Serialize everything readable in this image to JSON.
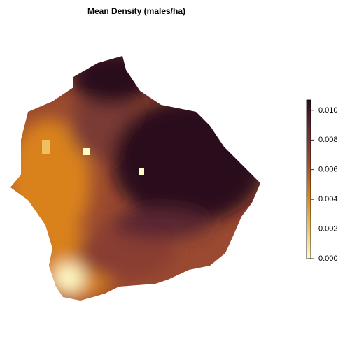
{
  "title": "Mean Density (males/ha)",
  "colorbar": {
    "lim": [
      0,
      0.0107
    ],
    "ticks": [
      {
        "value": 0,
        "label": "0.000"
      },
      {
        "value": 0.002,
        "label": "0.002"
      },
      {
        "value": 0.004,
        "label": "0.004"
      },
      {
        "value": 0.006,
        "label": "0.006"
      },
      {
        "value": 0.008,
        "label": "0.008"
      },
      {
        "value": 0.01,
        "label": "0.010"
      }
    ],
    "colors": [
      "#fffbc8",
      "#f0c060",
      "#d9821a",
      "#a04a2f",
      "#6b2d33",
      "#2b0f1c"
    ]
  }
}
